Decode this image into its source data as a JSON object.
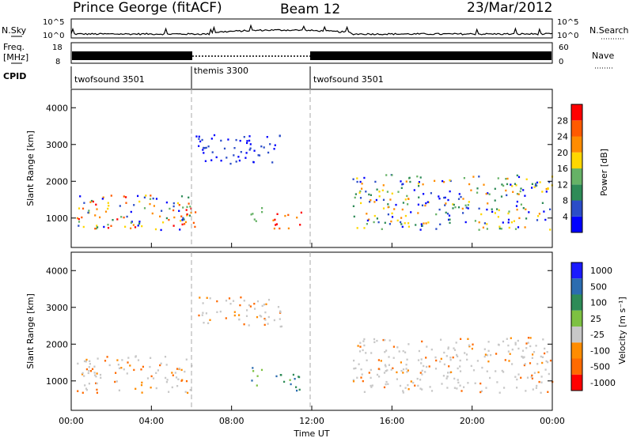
{
  "header": {
    "station": "Prince George (fitACF)",
    "beam": "Beam 12",
    "date": "23/Mar/2012"
  },
  "top_panels": {
    "nsky_label": "N.Sky",
    "nsky_ticks": [
      "10^5",
      "10^0"
    ],
    "nsearch_label": "N.Search",
    "freq_label": "Freq.",
    "freq_unit": "[MHz]",
    "freq_ticks": [
      "18",
      "8"
    ],
    "nave_label": "Nave",
    "nave_ticks": [
      "60",
      "0"
    ],
    "cpid_label": "CPID",
    "cpid_segments": [
      {
        "label": "twofsound 3501",
        "start": 0.0,
        "end": 6.0
      },
      {
        "label": "themis 3300",
        "start": 6.0,
        "end": 12.0
      },
      {
        "label": "twofsound 3501",
        "start": 12.0,
        "end": 24.0
      }
    ]
  },
  "colors": {
    "power": [
      "#0000ff",
      "#2b4dc8",
      "#2e8b57",
      "#66b266",
      "#ffd700",
      "#ff8c00",
      "#ff5a00",
      "#ff0000"
    ],
    "velocity": [
      "#1a1aff",
      "#2b6cb0",
      "#2e8b57",
      "#7dc142",
      "#c8c8c8",
      "#ff8c00",
      "#ff6a00",
      "#ff0000"
    ]
  },
  "chart_data": [
    {
      "type": "heatmap",
      "name": "power",
      "ylabel": "Slant Range [km]",
      "xlim": [
        0,
        24
      ],
      "ylim": [
        200,
        4500
      ],
      "yticks": [
        "1000",
        "2000",
        "3000",
        "4000"
      ],
      "colorbar_label": "Power [dB]",
      "colorbar_ticks": [
        "4",
        "8",
        "12",
        "16",
        "20",
        "24",
        "28"
      ],
      "regions": [
        {
          "x": [
            0.2,
            6.0
          ],
          "y": [
            700,
            1700
          ],
          "level": "mixed-high"
        },
        {
          "x": [
            5.0,
            6.2
          ],
          "y": [
            700,
            1300
          ],
          "level": "high"
        },
        {
          "x": [
            6.2,
            10.5
          ],
          "y": [
            2500,
            3300
          ],
          "level": "low"
        },
        {
          "x": [
            8.8,
            9.5
          ],
          "y": [
            900,
            1400
          ],
          "level": "mid"
        },
        {
          "x": [
            10.0,
            11.5
          ],
          "y": [
            700,
            1200
          ],
          "level": "high"
        },
        {
          "x": [
            14.0,
            24.0
          ],
          "y": [
            700,
            2200
          ],
          "level": "mixed-mid"
        }
      ]
    },
    {
      "type": "heatmap",
      "name": "velocity",
      "ylabel": "Slant Range [km]",
      "xlabel": "Time UT",
      "xlim": [
        0,
        24
      ],
      "xticks": [
        "00:00",
        "04:00",
        "08:00",
        "12:00",
        "16:00",
        "20:00",
        "00:00"
      ],
      "ylim": [
        200,
        4500
      ],
      "yticks": [
        "1000",
        "2000",
        "3000",
        "4000"
      ],
      "colorbar_label": "Velocity [m s⁻¹]",
      "colorbar_ticks": [
        "1000",
        "500",
        "100",
        "25",
        "-25",
        "-100",
        "-500",
        "-1000"
      ],
      "regions": [
        {
          "x": [
            0.2,
            6.0
          ],
          "y": [
            700,
            1700
          ],
          "level": "ground-and-negative"
        },
        {
          "x": [
            6.2,
            10.5
          ],
          "y": [
            2500,
            3300
          ],
          "level": "ground"
        },
        {
          "x": [
            8.8,
            9.5
          ],
          "y": [
            900,
            1400
          ],
          "level": "positive"
        },
        {
          "x": [
            10.0,
            11.5
          ],
          "y": [
            700,
            1200
          ],
          "level": "positive"
        },
        {
          "x": [
            14.0,
            24.0
          ],
          "y": [
            700,
            2200
          ],
          "level": "ground"
        }
      ]
    }
  ]
}
